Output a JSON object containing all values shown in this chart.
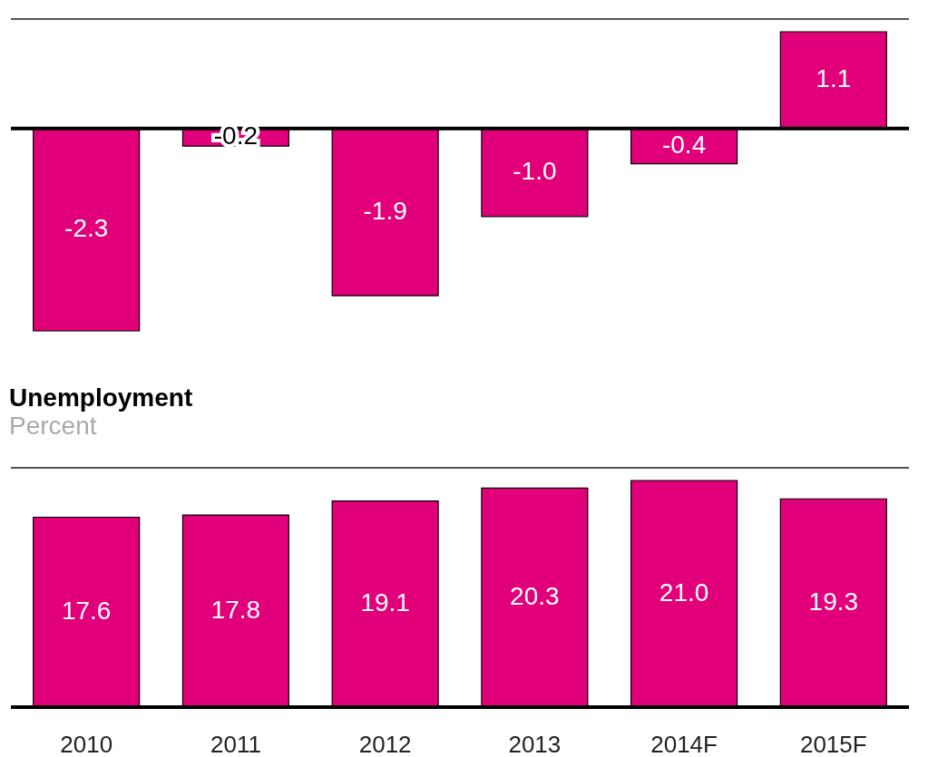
{
  "chart_data": [
    {
      "type": "bar",
      "categories": [
        null,
        null,
        null,
        null,
        null,
        null
      ],
      "values": [
        -2.3,
        -0.2,
        -1.9,
        -1.0,
        -0.4,
        1.1
      ],
      "value_labels": [
        "-2.3",
        "-0.2",
        "-1.9",
        "-1.0",
        "-0.4",
        "1.1"
      ],
      "color": "#e2007a",
      "tick_labels": false
    },
    {
      "type": "bar",
      "title": "Unemployment",
      "subtitle": "Percent",
      "categories": [
        "2010",
        "2011",
        "2012",
        "2013",
        "2014F",
        "2015F"
      ],
      "values": [
        17.6,
        17.8,
        19.1,
        20.3,
        21.0,
        19.3
      ],
      "value_labels": [
        "17.6",
        "17.8",
        "19.1",
        "20.3",
        "21.0",
        "19.3"
      ],
      "color": "#e2007a",
      "tick_labels": "x"
    }
  ]
}
